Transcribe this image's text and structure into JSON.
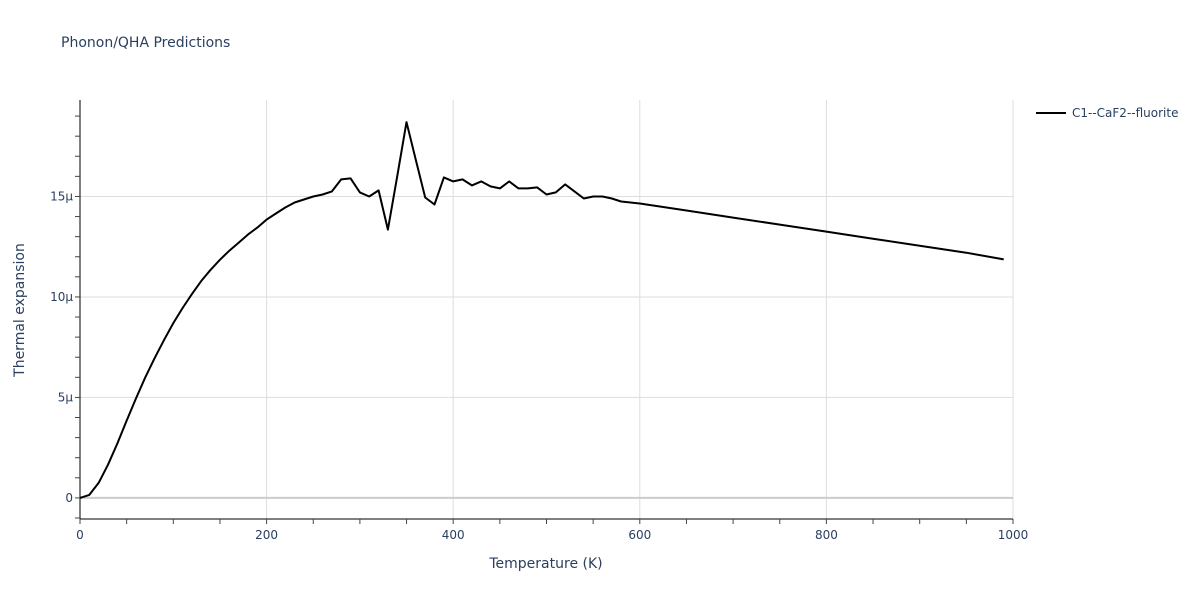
{
  "chart_title": "Phonon/QHA Predictions",
  "legend": {
    "entries": [
      {
        "label": "C1--CaF2--fluorite",
        "color": "#000000"
      }
    ]
  },
  "axes": {
    "x": {
      "title": "Temperature (K)",
      "ticks": [
        "0",
        "200",
        "400",
        "600",
        "800",
        "1000"
      ]
    },
    "y": {
      "title": "Thermal expansion",
      "ticks": [
        "0",
        "5μ",
        "10μ",
        "15μ"
      ]
    }
  },
  "chart_data": {
    "type": "line",
    "title": "Phonon/QHA Predictions",
    "xlabel": "Temperature (K)",
    "ylabel": "Thermal expansion",
    "xlim": [
      0,
      1000
    ],
    "ylim": [
      -1.05e-06,
      1.98e-05
    ],
    "x_ticks": [
      0,
      200,
      400,
      600,
      800,
      1000
    ],
    "y_ticks": [
      0,
      5e-06,
      1e-05,
      1.5e-05
    ],
    "y_tick_labels": [
      "0",
      "5μ",
      "10μ",
      "15μ"
    ],
    "grid": true,
    "legend_position": "right-top",
    "series": [
      {
        "name": "C1--CaF2--fluorite",
        "color": "#000000",
        "x": [
          0,
          10,
          20,
          30,
          40,
          50,
          60,
          70,
          80,
          90,
          100,
          110,
          120,
          130,
          140,
          150,
          160,
          170,
          180,
          190,
          200,
          210,
          220,
          230,
          240,
          250,
          260,
          270,
          280,
          290,
          300,
          310,
          320,
          330,
          340,
          350,
          360,
          370,
          380,
          390,
          400,
          410,
          420,
          430,
          440,
          450,
          460,
          470,
          480,
          490,
          500,
          510,
          520,
          530,
          540,
          550,
          560,
          570,
          580,
          590,
          600,
          650,
          700,
          750,
          800,
          850,
          900,
          950,
          990
        ],
        "y_micro": [
          0,
          0.15,
          0.75,
          1.65,
          2.7,
          3.85,
          4.95,
          6.0,
          6.95,
          7.85,
          8.7,
          9.45,
          10.15,
          10.8,
          11.35,
          11.85,
          12.3,
          12.7,
          13.1,
          13.45,
          13.85,
          14.15,
          14.45,
          14.7,
          14.85,
          15.0,
          15.1,
          15.25,
          15.85,
          15.9,
          15.2,
          15.0,
          15.3,
          13.35,
          16.0,
          18.7,
          16.8,
          14.95,
          14.6,
          15.95,
          15.75,
          15.85,
          15.55,
          15.75,
          15.5,
          15.4,
          15.75,
          15.4,
          15.4,
          15.45,
          15.1,
          15.2,
          15.6,
          15.25,
          14.9,
          15.0,
          15.0,
          14.9,
          14.75,
          14.7,
          14.65,
          14.3,
          13.95,
          13.6,
          13.25,
          12.9,
          12.55,
          12.2,
          11.87
        ]
      }
    ]
  }
}
